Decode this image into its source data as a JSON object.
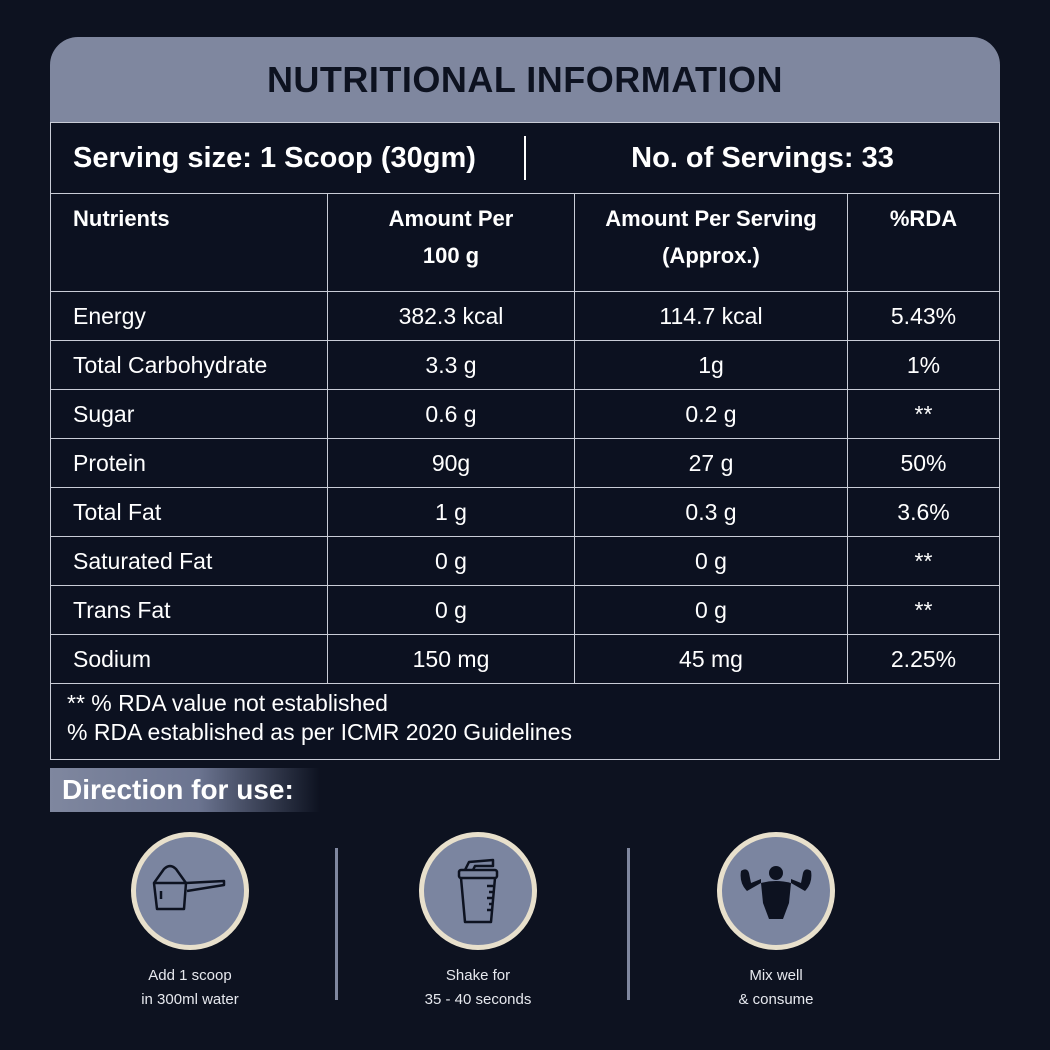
{
  "title": "NUTRITIONAL INFORMATION",
  "serving_size": "Serving size: 1 Scoop (30gm)",
  "servings": "No. of Servings: 33",
  "columns": [
    "Nutrients",
    "Amount Per\n100 g",
    "Amount Per Serving\n(Approx.)",
    "%RDA"
  ],
  "rows": [
    [
      "Energy",
      "382.3 kcal",
      "114.7 kcal",
      "5.43%"
    ],
    [
      "Total Carbohydrate",
      "3.3 g",
      "1g",
      "1%"
    ],
    [
      "Sugar",
      "0.6 g",
      "0.2 g",
      "**"
    ],
    [
      "Protein",
      "90g",
      "27 g",
      "50%"
    ],
    [
      "Total Fat",
      "1 g",
      "0.3 g",
      "3.6%"
    ],
    [
      "Saturated Fat",
      "0 g",
      "0 g",
      "**"
    ],
    [
      "Trans Fat",
      "0 g",
      "0 g",
      "**"
    ],
    [
      "Sodium",
      "150 mg",
      "45 mg",
      "2.25%"
    ]
  ],
  "footnotes": [
    "** % RDA value not established",
    "% RDA established as per ICMR 2020 Guidelines"
  ],
  "direction": {
    "title": "Direction for use:",
    "steps": [
      {
        "icon": "scoop-icon",
        "line1": "Add 1 scoop",
        "line2": "in 300ml water"
      },
      {
        "icon": "shaker-icon",
        "line1": "Shake for",
        "line2": "35 - 40 seconds"
      },
      {
        "icon": "muscle-man-icon",
        "line1": "Mix well",
        "line2": "& consume"
      }
    ]
  },
  "colors": {
    "background": "#0d1220",
    "header": "#7f879f",
    "icon_circle": "#7b85a0",
    "circle_border": "#e8e0cc"
  }
}
